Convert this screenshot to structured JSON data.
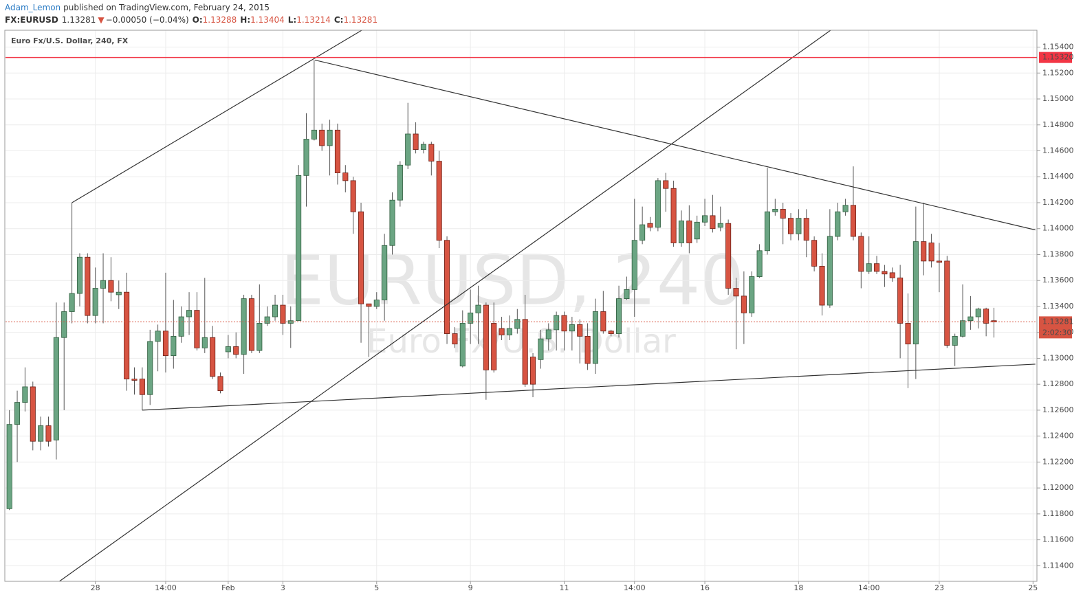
{
  "header": {
    "author": "Adam_Lemon",
    "published": "published on TradingView.com, February 24, 2015",
    "symbol": "FX:EURUSD",
    "last": "1.13281",
    "arrow": "▼",
    "change": "−0.00050 (−0.04%)",
    "o_label": "O:",
    "open": "1.13288",
    "h_label": "H:",
    "high": "1.13404",
    "l_label": "L:",
    "low": "1.13214",
    "c_label": "C:",
    "close": "1.13281"
  },
  "chart_data": {
    "type": "candlestick",
    "title": "Euro Fx/U.S. Dollar, 240, FX",
    "watermark": {
      "symbol": "EURUSD, 240",
      "name": "Euro Fx/U.S. Dollar"
    },
    "categories": [
      null,
      null,
      null,
      null,
      null,
      null,
      null,
      null,
      null,
      null,
      null,
      "28",
      null,
      null,
      null,
      null,
      null,
      null,
      null,
      null,
      "14:00",
      null,
      null,
      null,
      null,
      null,
      null,
      null,
      "Feb",
      null,
      null,
      null,
      null,
      null,
      null,
      "3",
      null,
      null,
      null,
      null,
      null,
      null,
      null,
      null,
      null,
      null,
      null,
      "5",
      null,
      null,
      null,
      null,
      null,
      null,
      null,
      null,
      null,
      null,
      null,
      "9",
      null,
      null,
      null,
      null,
      null,
      null,
      null,
      null,
      null,
      null,
      null,
      "11",
      null,
      null,
      null,
      null,
      null,
      null,
      null,
      null,
      "14:00",
      null,
      null,
      null,
      null,
      null,
      null,
      null,
      null,
      "16",
      null,
      null,
      null,
      null,
      null,
      null,
      null,
      null,
      null,
      null,
      null,
      "18",
      null,
      null,
      null,
      null,
      null,
      null,
      null,
      null,
      "14:00",
      null,
      null,
      null,
      null,
      null,
      null,
      null,
      null,
      "23",
      null,
      null,
      null,
      null,
      null,
      null,
      null,
      null,
      null,
      null,
      null,
      "25"
    ],
    "open": [
      1.1184,
      1.1249,
      1.1266,
      1.1278,
      1.1236,
      1.1248,
      1.1237,
      1.1316,
      1.1336,
      1.135,
      1.1378,
      1.1333,
      1.1354,
      1.136,
      1.1349,
      1.1351,
      1.1284,
      1.1284,
      1.1272,
      1.1313,
      1.1321,
      1.1302,
      1.1317,
      1.1332,
      1.1337,
      1.1308,
      1.1316,
      1.1286,
      1.1305,
      1.1309,
      1.1303,
      1.1346,
      1.1306,
      1.1327,
      1.1332,
      1.1341,
      1.1327,
      1.1329,
      1.1441,
      1.1469,
      1.1476,
      1.1464,
      1.1476,
      1.1443,
      1.1437,
      1.1413,
      1.1342,
      1.134,
      1.1345,
      1.1387,
      1.1422,
      1.1449,
      1.1473,
      1.1461,
      1.1465,
      1.1452,
      1.1391,
      1.1319,
      1.1294,
      1.1327,
      1.1335,
      1.1341,
      1.1327,
      1.1323,
      1.1318,
      1.1323,
      1.133,
      1.1301,
      1.1299,
      1.1315,
      1.1322,
      1.1333,
      1.1321,
      1.1326,
      1.1317,
      1.1296,
      1.1336,
      1.1321,
      1.1319,
      1.1346,
      1.1353,
      1.1391,
      1.1404,
      1.1401,
      1.1437,
      1.1431,
      1.1389,
      1.1406,
      1.1392,
      1.1405,
      1.141,
      1.1401,
      1.1404,
      1.1354,
      1.1348,
      1.1335,
      1.1363,
      1.1383,
      1.1413,
      1.1415,
      1.1408,
      1.1396,
      1.1408,
      1.1391,
      1.1371,
      1.1341,
      1.1394,
      1.1413,
      1.1418,
      1.1394,
      1.1367,
      1.1373,
      1.1367,
      1.1366,
      1.1362,
      1.1327,
      1.1311,
      1.139,
      1.1389,
      1.1375,
      1.1375,
      1.131,
      1.1317,
      1.1329,
      1.1332,
      1.1338,
      1.1329,
      null,
      null,
      null,
      null,
      null
    ],
    "high": [
      1.126,
      1.1275,
      1.1293,
      1.1282,
      1.1255,
      1.1255,
      1.1343,
      1.1343,
      1.142,
      1.1381,
      1.1381,
      1.137,
      1.1381,
      1.1378,
      1.136,
      1.1366,
      1.1293,
      1.1293,
      1.1322,
      1.1326,
      1.1366,
      1.1345,
      1.134,
      1.1351,
      1.1351,
      1.1362,
      1.1325,
      1.1289,
      1.1318,
      1.132,
      1.1349,
      1.1349,
      1.1357,
      1.134,
      1.1349,
      1.1349,
      1.134,
      1.1449,
      1.1489,
      1.153,
      1.1481,
      1.1484,
      1.1481,
      1.1449,
      1.144,
      1.142,
      1.1342,
      1.1351,
      1.1396,
      1.1428,
      1.1452,
      1.1497,
      1.1482,
      1.1467,
      1.1467,
      1.146,
      1.1394,
      1.1324,
      1.1337,
      1.1353,
      1.1356,
      1.1343,
      1.1343,
      1.1332,
      1.1333,
      1.1338,
      1.1349,
      1.1304,
      1.1322,
      1.1327,
      1.1336,
      1.1336,
      1.1332,
      1.133,
      1.1327,
      1.1346,
      1.1352,
      1.1322,
      1.1356,
      1.1363,
      1.1423,
      1.1417,
      1.1409,
      1.1439,
      1.1443,
      1.1437,
      1.1414,
      1.1418,
      1.141,
      1.1423,
      1.1426,
      1.1417,
      1.1407,
      1.1362,
      1.1367,
      1.1367,
      1.1388,
      1.1447,
      1.1423,
      1.142,
      1.1412,
      1.1415,
      1.1415,
      1.1394,
      1.1381,
      1.1415,
      1.142,
      1.1423,
      1.1448,
      1.1397,
      1.1394,
      1.1379,
      1.1372,
      1.137,
      1.1372,
      1.135,
      1.1417,
      1.142,
      1.1396,
      1.1389,
      1.1379,
      1.1319,
      1.1357,
      1.1348,
      1.1339,
      1.1339,
      1.1339,
      null,
      null,
      null,
      null,
      null
    ],
    "low": [
      1.1183,
      1.122,
      1.1259,
      1.1229,
      1.1229,
      1.1232,
      1.1222,
      1.126,
      1.1327,
      1.134,
      1.1327,
      1.1327,
      1.1327,
      1.1344,
      1.1338,
      1.1275,
      1.1272,
      1.126,
      1.1264,
      1.129,
      1.1289,
      1.1292,
      1.1312,
      1.1318,
      1.1306,
      1.1304,
      1.1284,
      1.1273,
      1.13,
      1.13,
      1.1288,
      1.1304,
      1.1304,
      1.1325,
      1.1329,
      1.1318,
      1.1308,
      1.1329,
      1.1417,
      1.1468,
      1.146,
      1.1441,
      1.1434,
      1.1428,
      1.1396,
      1.1312,
      1.1301,
      1.1338,
      1.1329,
      1.138,
      1.1417,
      1.1446,
      1.1458,
      1.1458,
      1.1441,
      1.1385,
      1.1311,
      1.1308,
      1.1293,
      1.1311,
      1.1311,
      1.1268,
      1.1289,
      1.1314,
      1.1314,
      1.1319,
      1.1278,
      1.127,
      1.1292,
      1.1306,
      1.1306,
      1.1306,
      1.1306,
      1.1296,
      1.1291,
      1.1288,
      1.1319,
      1.1317,
      1.1316,
      1.1345,
      1.1332,
      1.1388,
      1.1398,
      1.1398,
      1.1413,
      1.1386,
      1.1386,
      1.1381,
      1.1389,
      1.1402,
      1.1397,
      1.1398,
      1.1349,
      1.1307,
      1.1311,
      1.1332,
      1.1362,
      1.138,
      1.141,
      1.1388,
      1.1391,
      1.1391,
      1.1378,
      1.1367,
      1.1333,
      1.1339,
      1.1391,
      1.141,
      1.1391,
      1.1354,
      1.1365,
      1.1365,
      1.1355,
      1.1359,
      1.13,
      1.1277,
      1.1284,
      1.1364,
      1.137,
      1.1351,
      1.1308,
      1.1294,
      1.1316,
      1.1322,
      1.1323,
      1.1317,
      1.1316,
      null,
      null,
      null,
      null,
      null
    ],
    "close": [
      1.1249,
      1.1266,
      1.1278,
      1.1236,
      1.1248,
      1.1236,
      1.1316,
      1.1336,
      1.135,
      1.1378,
      1.1333,
      1.1354,
      1.136,
      1.1351,
      1.1351,
      1.1284,
      1.1283,
      1.1272,
      1.1313,
      1.1321,
      1.1302,
      1.1317,
      1.1332,
      1.1337,
      1.1308,
      1.1316,
      1.1286,
      1.1275,
      1.1309,
      1.1303,
      1.1346,
      1.1306,
      1.1327,
      1.1332,
      1.1341,
      1.1327,
      1.1329,
      1.1441,
      1.1469,
      1.1476,
      1.1464,
      1.1476,
      1.1443,
      1.1437,
      1.1413,
      1.1342,
      1.134,
      1.1345,
      1.1387,
      1.1422,
      1.1449,
      1.1473,
      1.1461,
      1.1465,
      1.1452,
      1.1391,
      1.1319,
      1.1311,
      1.1327,
      1.1335,
      1.1341,
      1.1291,
      1.1291,
      1.1318,
      1.1323,
      1.133,
      1.128,
      1.128,
      1.1315,
      1.1322,
      1.1333,
      1.1321,
      1.1326,
      1.1317,
      1.1296,
      1.1336,
      1.1321,
      1.1319,
      1.1346,
      1.1353,
      1.1391,
      1.1403,
      1.1401,
      1.1437,
      1.1431,
      1.1389,
      1.1406,
      1.1389,
      1.1405,
      1.141,
      1.14,
      1.1404,
      1.1354,
      1.1348,
      1.1335,
      1.1363,
      1.1383,
      1.1413,
      1.1415,
      1.1408,
      1.1396,
      1.1408,
      1.1391,
      1.1371,
      1.1341,
      1.1394,
      1.1413,
      1.1418,
      1.1394,
      1.1367,
      1.1373,
      1.1367,
      1.1365,
      1.1362,
      1.1327,
      1.1311,
      1.139,
      1.1375,
      1.1375,
      1.1374,
      1.131,
      1.1317,
      1.1329,
      1.1332,
      1.1338,
      1.1327,
      1.1328,
      null,
      null,
      null,
      null,
      null
    ],
    "up_color": "#6ba583",
    "down_color": "#d75442",
    "ylim": [
      1.1128,
      1.1553
    ],
    "yticks": [
      {
        "value": 1.114,
        "label": "1.11400"
      },
      {
        "value": 1.116,
        "label": "1.11600"
      },
      {
        "value": 1.118,
        "label": "1.11800"
      },
      {
        "value": 1.12,
        "label": "1.12000"
      },
      {
        "value": 1.122,
        "label": "1.12200"
      },
      {
        "value": 1.124,
        "label": "1.12400"
      },
      {
        "value": 1.126,
        "label": "1.12600"
      },
      {
        "value": 1.128,
        "label": "1.12800"
      },
      {
        "value": 1.13,
        "label": "1.13000"
      },
      {
        "value": 1.132,
        "label": "1.13200"
      },
      {
        "value": 1.134,
        "label": "1.13400"
      },
      {
        "value": 1.136,
        "label": "1.13600"
      },
      {
        "value": 1.138,
        "label": "1.13800"
      },
      {
        "value": 1.14,
        "label": "1.14000"
      },
      {
        "value": 1.142,
        "label": "1.14200"
      },
      {
        "value": 1.144,
        "label": "1.14400"
      },
      {
        "value": 1.146,
        "label": "1.14600"
      },
      {
        "value": 1.148,
        "label": "1.14800"
      },
      {
        "value": 1.15,
        "label": "1.15000"
      },
      {
        "value": 1.152,
        "label": "1.15200"
      },
      {
        "value": 1.154,
        "label": "1.15400"
      }
    ],
    "grid": true,
    "hlines": [
      {
        "value": 1.1532,
        "label": "1.15320",
        "color": "#f23645"
      }
    ],
    "last_price": {
      "value": 1.13281,
      "label": "1.13281",
      "countdown": "2:02:30",
      "color": "#d75442"
    },
    "trendlines": [
      {
        "from": [
          8.0,
          1.142
        ],
        "to": [
          45.1,
          1.1553
        ]
      },
      {
        "from": [
          39.1,
          1.153
        ],
        "to": [
          131.3,
          1.1399
        ]
      },
      {
        "from": [
          17.0,
          1.126
        ],
        "to": [
          131.3,
          1.12955
        ]
      },
      {
        "from": [
          6.4,
          1.1128
        ],
        "to": [
          105.1,
          1.1553
        ]
      }
    ]
  }
}
